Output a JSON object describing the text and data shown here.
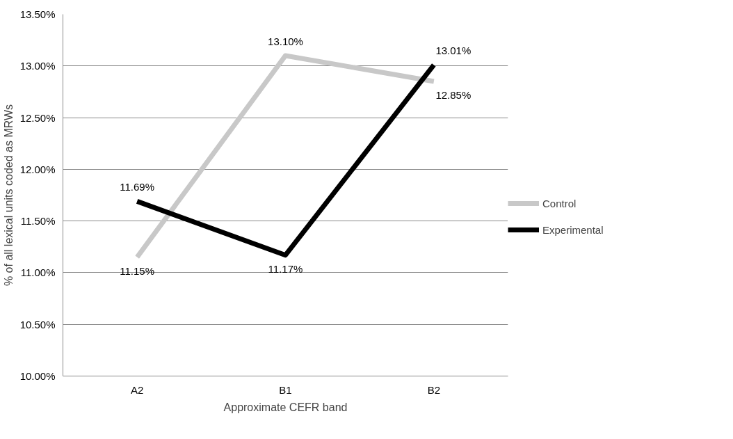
{
  "chart_data": {
    "type": "line",
    "xlabel": "Approximate CEFR band",
    "ylabel": "% of all lexical units coded as MRWs",
    "categories": [
      "A2",
      "B1",
      "B2"
    ],
    "series": [
      {
        "name": "Control",
        "color": "#c8c8c8",
        "values": [
          11.15,
          13.1,
          12.85
        ],
        "value_labels": [
          "11.15%",
          "13.10%",
          "12.85%"
        ]
      },
      {
        "name": "Experimental",
        "color": "#000000",
        "values": [
          11.69,
          11.17,
          13.01
        ],
        "value_labels": [
          "11.69%",
          "11.17%",
          "13.01%"
        ]
      }
    ],
    "ylim": [
      10,
      13.5
    ],
    "yticks": [
      {
        "value": 10,
        "label": "10.00%"
      },
      {
        "value": 10.5,
        "label": "10.50%"
      },
      {
        "value": 11,
        "label": "11.00%"
      },
      {
        "value": 11.5,
        "label": "11.50%"
      },
      {
        "value": 12,
        "label": "12.00%"
      },
      {
        "value": 12.5,
        "label": "12.50%"
      },
      {
        "value": 13,
        "label": "13.00%"
      },
      {
        "value": 13.5,
        "label": "13.50%"
      }
    ],
    "grid": "y",
    "legend": "right",
    "marker": "none",
    "line_style": "solid"
  }
}
